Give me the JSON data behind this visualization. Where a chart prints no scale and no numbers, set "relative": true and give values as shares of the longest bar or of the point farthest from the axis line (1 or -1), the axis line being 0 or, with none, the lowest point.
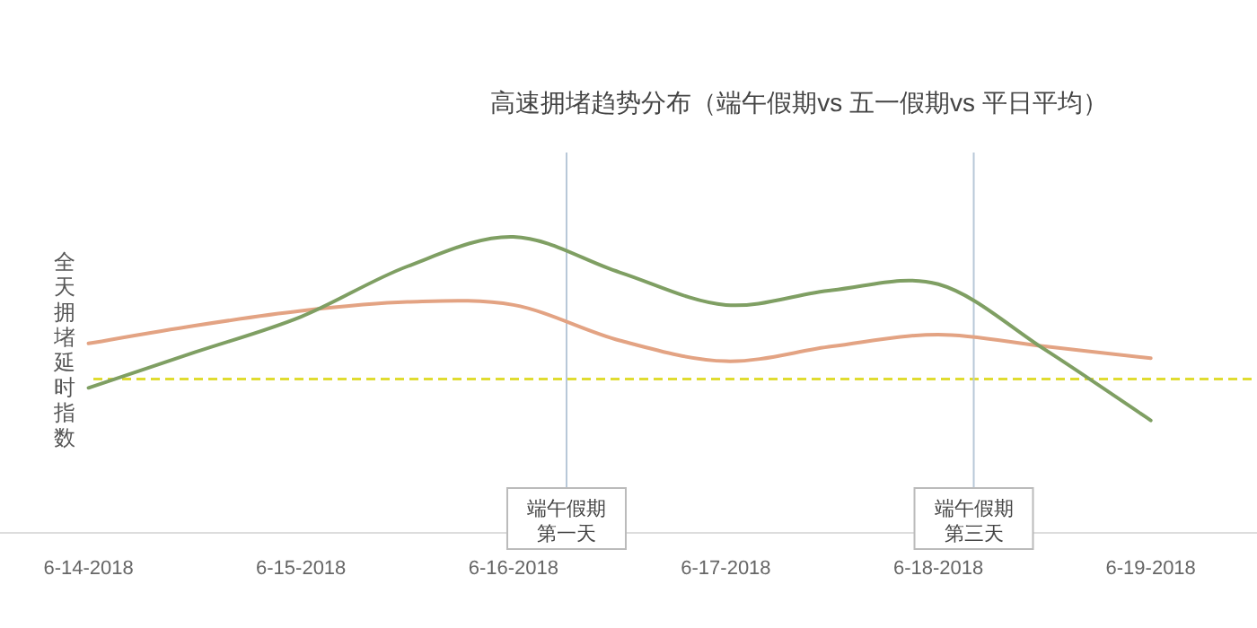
{
  "chart_data": {
    "type": "line",
    "title": "高速拥堵趋势分布（端午假期vs 五一假期vs 平日平均）",
    "ylabel": "全天拥堵延时指数",
    "relative": true,
    "x": [
      "2018-06-14T00:00",
      "2018-06-14T12:00",
      "2018-06-15T00:00",
      "2018-06-15T12:00",
      "2018-06-16T00:00",
      "2018-06-16T12:00",
      "2018-06-17T00:00",
      "2018-06-17T12:00",
      "2018-06-18T00:00",
      "2018-06-18T12:00",
      "2018-06-19T00:00"
    ],
    "series": [
      {
        "color": "#e3a383",
        "values": [
          0.64,
          0.7,
          0.75,
          0.78,
          0.77,
          0.65,
          0.58,
          0.63,
          0.67,
          0.63,
          0.59
        ]
      },
      {
        "color": "#7f9f63",
        "values": [
          0.49,
          0.61,
          0.73,
          0.9,
          1.0,
          0.88,
          0.77,
          0.82,
          0.84,
          0.62,
          0.38
        ]
      }
    ],
    "xlim": [
      "2018-06-13T14:00",
      "2018-06-19T12:00"
    ],
    "xticks": [
      {
        "value": "2018-06-14",
        "label": "6-14-2018"
      },
      {
        "value": "2018-06-15",
        "label": "6-15-2018"
      },
      {
        "value": "2018-06-16",
        "label": "6-16-2018"
      },
      {
        "value": "2018-06-17",
        "label": "6-17-2018"
      },
      {
        "value": "2018-06-18",
        "label": "6-18-2018"
      },
      {
        "value": "2018-06-19",
        "label": "6-19-2018"
      }
    ],
    "ref_lines": [
      {
        "axis": "y",
        "value": 0.52,
        "color": "#e0dc30",
        "line_style": "dashed"
      },
      {
        "axis": "x",
        "value": "2018-06-16T06:00",
        "label": "端午假期第一天",
        "color": "#b8c8d8",
        "line_style": "solid"
      },
      {
        "axis": "x",
        "value": "2018-06-18T04:00",
        "label": "端午假期第三天",
        "color": "#b8c8d8",
        "line_style": "solid"
      }
    ]
  }
}
